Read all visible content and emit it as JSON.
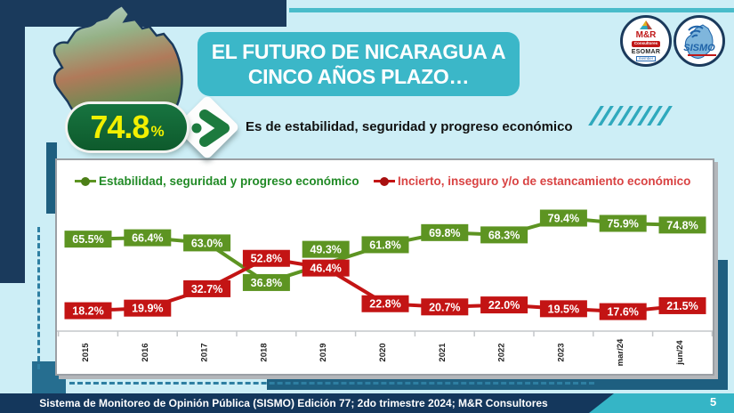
{
  "title": {
    "line1": "EL FUTURO DE NICARAGUA A",
    "line2": "CINCO AÑOS PLAZO…"
  },
  "badge": {
    "value": "74.8",
    "percent_sign": "%",
    "caption": "Es de estabilidad, seguridad y progreso económico"
  },
  "logos": {
    "mr": {
      "name": "M&R",
      "sub": "Consultores",
      "org": "ESOMAR",
      "member": "member"
    },
    "sismo": {
      "name": "SISMO"
    }
  },
  "chart_data": {
    "type": "line",
    "categories": [
      "2015",
      "2016",
      "2017",
      "2018",
      "2019",
      "2020",
      "2021",
      "2022",
      "2023",
      "mar/24",
      "jun/24"
    ],
    "series": [
      {
        "name": "Estabilidad, seguridad y progreso económico",
        "color": "#5d9422",
        "values": [
          65.5,
          66.4,
          63.0,
          36.8,
          49.3,
          61.8,
          69.8,
          68.3,
          79.4,
          75.9,
          74.8
        ]
      },
      {
        "name": "Incierto, inseguro y/o de estancamiento económico",
        "color": "#c31414",
        "values": [
          18.2,
          19.9,
          32.7,
          52.8,
          46.4,
          22.8,
          20.7,
          22.0,
          19.5,
          17.6,
          21.5
        ]
      }
    ],
    "value_suffix": "%",
    "ylim": [
      0,
      100
    ],
    "grid": false,
    "legend_position": "top",
    "title": "",
    "xlabel": "",
    "ylabel": ""
  },
  "footer": {
    "text": "Sistema de Monitoreo de Opinión Pública (SISMO) Edición 77; 2do trimestre 2024; M&R Consultores",
    "page": "5"
  },
  "colors": {
    "background": "#cdeef6",
    "navy": "#1a3a5c",
    "title_teal": "#3bb7c8",
    "petrol": "#1e5f80",
    "badge_green": "#0e5a2c",
    "badge_yellow": "#f2f000",
    "series_green": "#5d9422",
    "series_red": "#c31414",
    "footer_teal": "#35b5c6"
  }
}
